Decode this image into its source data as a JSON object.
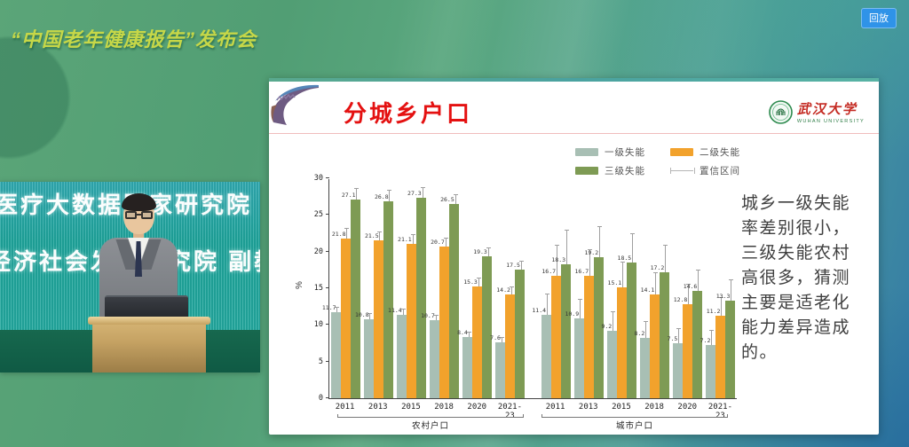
{
  "stage": {
    "event_title": "“中国老年健康报告”发布会",
    "replay_label": "回放"
  },
  "video": {
    "led_line1": "医疗大数据国家研究院",
    "led_line2": "经济社会发展研究院 副教"
  },
  "slide": {
    "title": "分城乡户口",
    "logo_cn": "武汉大学",
    "logo_en": "WUHAN UNIVERSITY",
    "note": "城乡一级失能率差别很小，三级失能农村高很多，猜测主要是适老化能力差异造成的。"
  },
  "chart_data": {
    "type": "bar",
    "title": "",
    "xlabel": "",
    "ylabel": "%",
    "ylim": [
      0,
      30
    ],
    "yticks": [
      0,
      5,
      10,
      15,
      20,
      25,
      30
    ],
    "grid": false,
    "legend_position": "top",
    "legend": [
      {
        "label": "一级失能",
        "color": "#a8bfb4",
        "kind": "box"
      },
      {
        "label": "二级失能",
        "color": "#f2a22c",
        "kind": "box"
      },
      {
        "label": "三级失能",
        "color": "#7e9b54",
        "kind": "box"
      },
      {
        "label": "置信区间",
        "color": "#b5b5b5",
        "kind": "errorbar"
      }
    ],
    "groups": [
      {
        "label": "农村户口",
        "categories": [
          "2011",
          "2013",
          "2015",
          "2018",
          "2020",
          "2021-23"
        ],
        "series": [
          {
            "name": "一级失能",
            "values": [
              11.7,
              10.8,
              11.4,
              10.7,
              8.4,
              7.6
            ],
            "ci_upper": [
              12.5,
              11.6,
              12.2,
              11.4,
              9.1,
              8.3
            ]
          },
          {
            "name": "二级失能",
            "values": [
              21.8,
              21.5,
              21.1,
              20.7,
              15.3,
              14.2
            ],
            "ci_upper": [
              23.2,
              22.8,
              22.4,
              21.9,
              16.4,
              15.3
            ]
          },
          {
            "name": "三级失能",
            "values": [
              27.1,
              26.8,
              27.3,
              26.5,
              19.3,
              17.5
            ],
            "ci_upper": [
              28.7,
              28.4,
              28.8,
              27.8,
              20.6,
              18.8
            ]
          }
        ]
      },
      {
        "label": "城市户口",
        "categories": [
          "2011",
          "2013",
          "2015",
          "2018",
          "2020",
          "2021-23"
        ],
        "series": [
          {
            "name": "一级失能",
            "values": [
              11.4,
              10.9,
              9.2,
              8.2,
              7.5,
              7.2
            ],
            "ci_upper": [
              14.3,
              13.5,
              11.8,
              10.5,
              9.6,
              9.3
            ]
          },
          {
            "name": "二级失能",
            "values": [
              16.7,
              16.7,
              15.1,
              14.1,
              12.8,
              11.2
            ],
            "ci_upper": [
              20.9,
              20.3,
              18.6,
              17.2,
              15.6,
              13.8
            ]
          },
          {
            "name": "三级失能",
            "values": [
              18.3,
              19.2,
              18.5,
              17.2,
              14.6,
              13.3
            ],
            "ci_upper": [
              23.0,
              23.5,
              22.5,
              20.9,
              17.6,
              16.2
            ]
          }
        ]
      }
    ]
  }
}
